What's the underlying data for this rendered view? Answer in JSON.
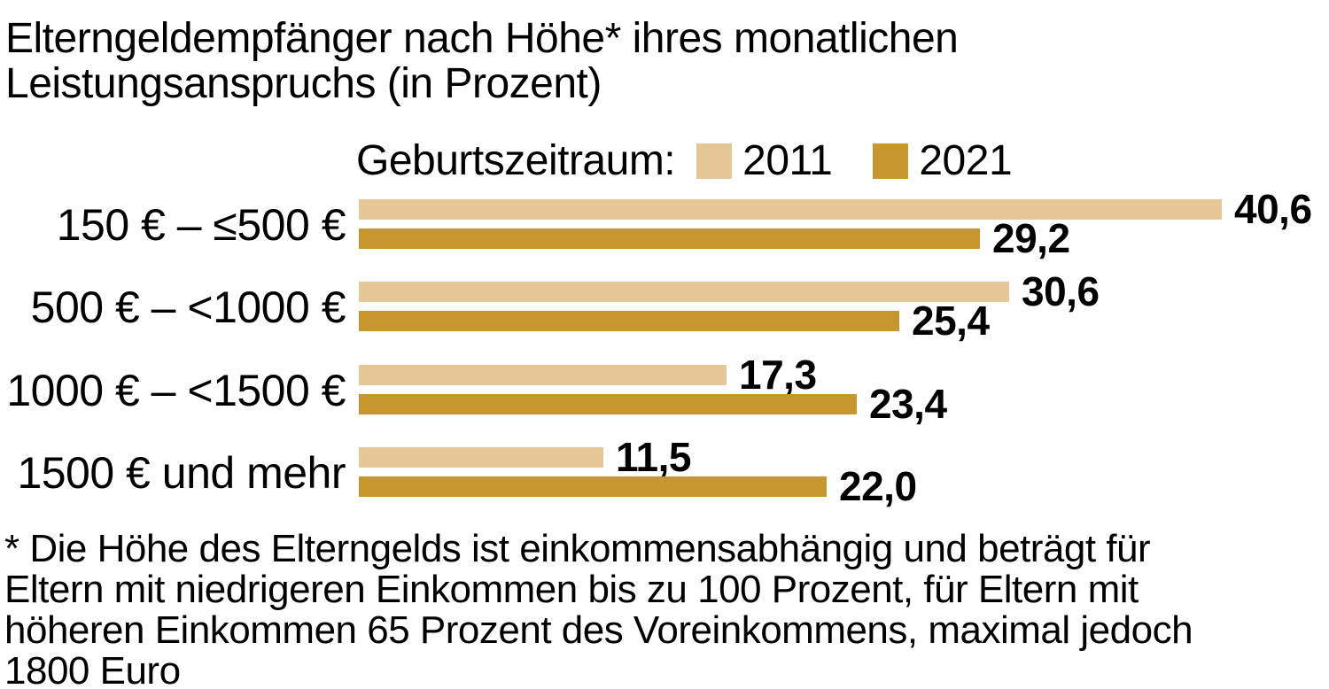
{
  "title": "Elterngeldempfänger nach Höhe* ihres monatlichen\nLeistungsanspruchs (in Prozent)",
  "legend": {
    "label": "Geburtszeitraum:",
    "items": [
      {
        "label": "2011",
        "color": "#E5C795"
      },
      {
        "label": "2021",
        "color": "#C8962F"
      }
    ]
  },
  "footnote": "* Die Höhe des Elterngelds ist einkommensabhängig und beträgt für\nEltern mit niedrigeren Einkommen bis zu 100 Prozent, für Eltern mit\nhöheren Einkommen 65 Prozent des Voreinkommens, maximal jedoch\n1800 Euro",
  "colors": {
    "background": "#ffffff",
    "text": "#000000",
    "series_2011": "#E5C795",
    "series_2021": "#C8962F"
  },
  "chart_data": {
    "type": "bar",
    "orientation": "horizontal",
    "title": "Elterngeldempfänger nach Höhe* ihres monatlichen Leistungsanspruchs (in Prozent)",
    "legend_title": "Geburtszeitraum:",
    "legend_position": "top",
    "grid": false,
    "xlim": [
      0,
      45
    ],
    "categories": [
      "150 € – ≤500 €",
      "500 € – <1000 €",
      "1000 € – <1500 €",
      "1500 € und mehr"
    ],
    "series": [
      {
        "name": "2011",
        "color": "#E5C795",
        "values": [
          40.6,
          30.6,
          17.3,
          11.5
        ],
        "labels": [
          "40,6",
          "30,6",
          "17,3",
          "11,5"
        ]
      },
      {
        "name": "2021",
        "color": "#C8962F",
        "values": [
          29.2,
          25.4,
          23.4,
          22.0
        ],
        "labels": [
          "29,2",
          "25,4",
          "23,4",
          "22,0"
        ]
      }
    ]
  }
}
